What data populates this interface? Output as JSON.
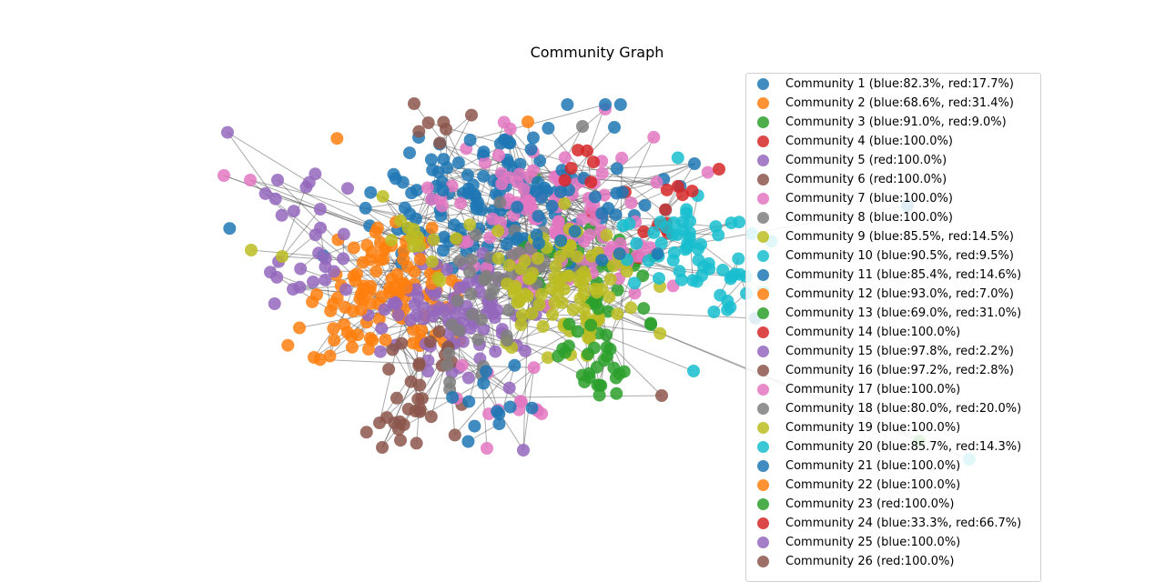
{
  "chart_data": {
    "type": "scatter",
    "title": "Community Graph",
    "grid": false,
    "legend_placement": "right",
    "series": [
      {
        "name": "Community 1 (blue:82.3%, red:17.7%)",
        "color": "#1f77b4"
      },
      {
        "name": "Community 2 (blue:68.6%, red:31.4%)",
        "color": "#ff7f0e"
      },
      {
        "name": "Community 3 (blue:91.0%, red:9.0%)",
        "color": "#2ca02c"
      },
      {
        "name": "Community 4 (blue:100.0%)",
        "color": "#d62728"
      },
      {
        "name": "Community 5 (red:100.0%)",
        "color": "#9467bd"
      },
      {
        "name": "Community 6 (red:100.0%)",
        "color": "#8c564b"
      },
      {
        "name": "Community 7 (blue:100.0%)",
        "color": "#e377c2"
      },
      {
        "name": "Community 8 (blue:100.0%)",
        "color": "#7f7f7f"
      },
      {
        "name": "Community 9 (blue:85.5%, red:14.5%)",
        "color": "#bcbd22"
      },
      {
        "name": "Community 10 (blue:90.5%, red:9.5%)",
        "color": "#17becf"
      },
      {
        "name": "Community 11 (blue:85.4%, red:14.6%)",
        "color": "#1f77b4"
      },
      {
        "name": "Community 12 (blue:93.0%, red:7.0%)",
        "color": "#ff7f0e"
      },
      {
        "name": "Community 13 (blue:69.0%, red:31.0%)",
        "color": "#2ca02c"
      },
      {
        "name": "Community 14 (blue:100.0%)",
        "color": "#d62728"
      },
      {
        "name": "Community 15 (blue:97.8%, red:2.2%)",
        "color": "#9467bd"
      },
      {
        "name": "Community 16 (blue:97.2%, red:2.8%)",
        "color": "#8c564b"
      },
      {
        "name": "Community 17 (blue:100.0%)",
        "color": "#e377c2"
      },
      {
        "name": "Community 18 (blue:80.0%, red:20.0%)",
        "color": "#7f7f7f"
      },
      {
        "name": "Community 19 (blue:100.0%)",
        "color": "#bcbd22"
      },
      {
        "name": "Community 20 (blue:85.7%, red:14.3%)",
        "color": "#17becf"
      },
      {
        "name": "Community 21 (blue:100.0%)",
        "color": "#1f77b4"
      },
      {
        "name": "Community 22 (blue:100.0%)",
        "color": "#ff7f0e"
      },
      {
        "name": "Community 23 (red:100.0%)",
        "color": "#2ca02c"
      },
      {
        "name": "Community 24 (blue:33.3%, red:66.7%)",
        "color": "#d62728"
      },
      {
        "name": "Community 25 (blue:100.0%)",
        "color": "#9467bd"
      },
      {
        "name": "Community 26 (red:100.0%)",
        "color": "#8c564b"
      }
    ]
  }
}
